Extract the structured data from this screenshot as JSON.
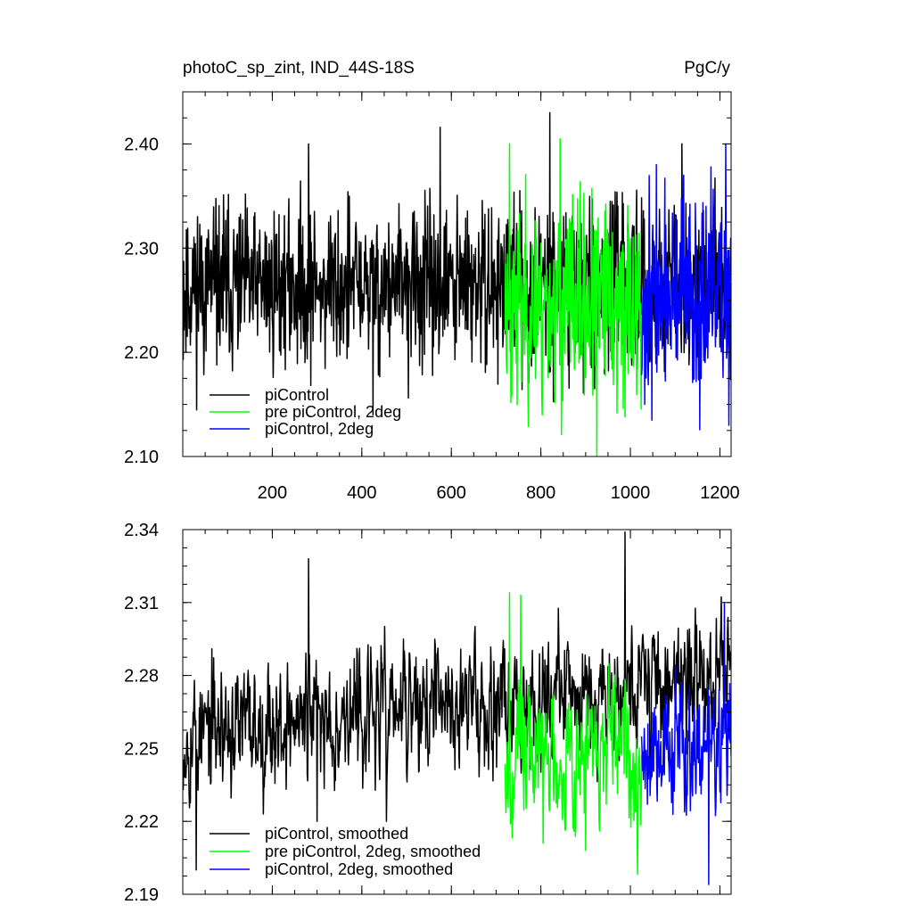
{
  "chart_data": [
    {
      "type": "line",
      "title": "photoC_sp_zint, IND_44S-18S",
      "units": "PgC/y",
      "xlim": [
        0,
        1225
      ],
      "ylim": [
        2.1,
        2.45
      ],
      "xticks": [
        200,
        400,
        600,
        800,
        1000,
        1200
      ],
      "yticks": [
        2.1,
        2.2,
        2.3,
        2.4
      ],
      "ytick_labels": [
        "2.10",
        "2.20",
        "2.30",
        "2.40"
      ],
      "xtick_labels": [
        "200",
        "400",
        "600",
        "800",
        "1000",
        "1200"
      ],
      "legend_position": "bottom-left",
      "series": [
        {
          "name": "piControl",
          "color": "#000000",
          "x_range": [
            1,
            1225
          ],
          "mean": 2.263,
          "amplitude": 0.035,
          "max_points": [
            [
              281,
              2.4
            ],
            [
              575,
              2.416
            ],
            [
              820,
              2.43
            ],
            [
              1115,
              2.4
            ]
          ],
          "min_points": [
            [
              425,
              2.14
            ],
            [
              920,
              2.165
            ]
          ],
          "seed": 11
        },
        {
          "name": "pre piControl, 2deg",
          "color": "#00ff00",
          "x_range": [
            720,
            1025
          ],
          "mean": 2.245,
          "amplitude": 0.042,
          "max_points": [
            [
              730,
              2.4
            ],
            [
              843,
              2.405
            ]
          ],
          "min_points": [
            [
              925,
              2.1
            ],
            [
              803,
              2.14
            ]
          ],
          "seed": 23
        },
        {
          "name": "piControl, 2deg",
          "color": "#0000ff",
          "x_range": [
            1025,
            1225
          ],
          "mean": 2.252,
          "amplitude": 0.042,
          "max_points": [
            [
              1058,
              2.38
            ],
            [
              1213,
              2.4
            ]
          ],
          "min_points": [
            [
              1220,
              2.13
            ],
            [
              1032,
              2.15
            ]
          ],
          "seed": 37
        }
      ]
    },
    {
      "type": "line",
      "xlim": [
        0,
        1225
      ],
      "ylim": [
        2.19,
        2.34
      ],
      "yticks": [
        2.19,
        2.22,
        2.25,
        2.28,
        2.31,
        2.34
      ],
      "ytick_labels": [
        "2.19",
        "2.22",
        "2.25",
        "2.28",
        "2.31",
        "2.34"
      ],
      "xticks": [
        200,
        400,
        600,
        800,
        1000,
        1200
      ],
      "legend_position": "bottom-left",
      "series": [
        {
          "name": "piControl, smoothed",
          "color": "#000000",
          "x_range": [
            1,
            1225
          ],
          "mean": 2.268,
          "amplitude": 0.013,
          "trend": 2e-05,
          "max_points": [
            [
              281,
              2.328
            ],
            [
              988,
              2.339
            ]
          ],
          "min_points": [
            [
              30,
              2.2
            ],
            [
              300,
              2.22
            ],
            [
              455,
              2.22
            ]
          ],
          "seed": 53
        },
        {
          "name": "pre piControl, 2deg, smoothed",
          "color": "#00ff00",
          "x_range": [
            720,
            1025
          ],
          "mean": 2.248,
          "amplitude": 0.014,
          "max_points": [
            [
              730,
              2.314
            ],
            [
              755,
              2.313
            ]
          ],
          "min_points": [
            [
              805,
              2.211
            ],
            [
              900,
              2.208
            ]
          ],
          "seed": 67
        },
        {
          "name": "piControl, 2deg, smoothed",
          "color": "#0000ff",
          "x_range": [
            1025,
            1225
          ],
          "mean": 2.252,
          "amplitude": 0.014,
          "max_points": [
            [
              1210,
              2.31
            ]
          ],
          "min_points": [
            [
              1175,
              2.194
            ]
          ],
          "seed": 79
        }
      ]
    }
  ]
}
